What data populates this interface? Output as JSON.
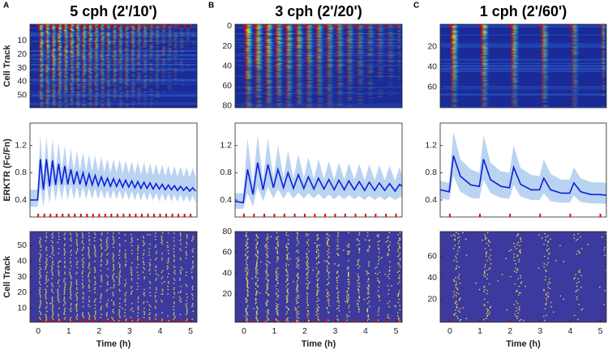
{
  "chart_data": [
    {
      "type": "heatmap",
      "panel_label": "A",
      "title": "5 cph (2'/10')",
      "ylabel": "Cell Track",
      "xlim": [
        -0.27,
        5.21
      ],
      "ylim": [
        -2,
        59
      ],
      "y_reversed": true,
      "yticks": [
        10,
        20,
        30,
        40,
        50
      ],
      "pulses": [
        0,
        0.2,
        0.4,
        0.6,
        0.8,
        1,
        1.2,
        1.4,
        1.6,
        1.8,
        2,
        2.2,
        2.4,
        2.6,
        2.8,
        3,
        3.2,
        3.4,
        3.6,
        3.8,
        4,
        4.2,
        4.4,
        4.6,
        4.8,
        5
      ],
      "pulse_color": "#e00000"
    },
    {
      "type": "line",
      "ylabel": "ERKTR (Fc/Fn)",
      "xlim": [
        -0.27,
        5.21
      ],
      "ylim": [
        0.15,
        1.53
      ],
      "yticks": [
        0.4,
        0.8,
        1.2
      ],
      "color": "#0b1fd8",
      "band_color": "#bad3f1",
      "pulse_color": "#e00000",
      "pulses": [
        0,
        0.2,
        0.4,
        0.6,
        0.8,
        1,
        1.2,
        1.4,
        1.6,
        1.8,
        2,
        2.2,
        2.4,
        2.6,
        2.8,
        3,
        3.2,
        3.4,
        3.6,
        3.8,
        4,
        4.2,
        4.4,
        4.6,
        4.8,
        5
      ],
      "x": [
        -0.27,
        -0.02,
        0.07,
        0.17,
        0.27,
        0.37,
        0.47,
        0.57,
        0.67,
        0.77,
        0.87,
        0.97,
        1.07,
        1.17,
        1.27,
        1.37,
        1.47,
        1.57,
        1.67,
        1.77,
        1.87,
        1.97,
        2.07,
        2.17,
        2.27,
        2.37,
        2.47,
        2.57,
        2.67,
        2.77,
        2.87,
        2.97,
        3.07,
        3.17,
        3.27,
        3.37,
        3.47,
        3.57,
        3.67,
        3.77,
        3.87,
        3.97,
        4.07,
        4.17,
        4.27,
        4.37,
        4.47,
        4.57,
        4.67,
        4.77,
        4.87,
        4.97,
        5.07,
        5.17
      ],
      "values": [
        0.4,
        0.4,
        1.0,
        0.55,
        1.0,
        0.6,
        0.98,
        0.62,
        0.93,
        0.63,
        0.9,
        0.63,
        0.85,
        0.63,
        0.82,
        0.63,
        0.8,
        0.62,
        0.78,
        0.62,
        0.76,
        0.61,
        0.74,
        0.61,
        0.72,
        0.6,
        0.71,
        0.6,
        0.7,
        0.59,
        0.69,
        0.59,
        0.68,
        0.58,
        0.67,
        0.57,
        0.66,
        0.57,
        0.65,
        0.56,
        0.64,
        0.56,
        0.63,
        0.55,
        0.62,
        0.55,
        0.61,
        0.54,
        0.6,
        0.54,
        0.59,
        0.53,
        0.58,
        0.53
      ],
      "upper": [
        0.55,
        0.55,
        1.35,
        0.75,
        1.33,
        0.8,
        1.3,
        0.82,
        1.25,
        0.83,
        1.2,
        0.83,
        1.15,
        0.83,
        1.12,
        0.83,
        1.1,
        0.82,
        1.07,
        0.82,
        1.05,
        0.81,
        1.03,
        0.81,
        1.01,
        0.8,
        1.0,
        0.8,
        0.99,
        0.79,
        0.98,
        0.79,
        0.97,
        0.78,
        0.96,
        0.77,
        0.95,
        0.77,
        0.94,
        0.76,
        0.93,
        0.76,
        0.92,
        0.75,
        0.91,
        0.75,
        0.9,
        0.74,
        0.89,
        0.74,
        0.88,
        0.73,
        0.87,
        0.73
      ],
      "lower": [
        0.3,
        0.3,
        0.6,
        0.3,
        0.65,
        0.35,
        0.66,
        0.38,
        0.65,
        0.4,
        0.64,
        0.4,
        0.62,
        0.41,
        0.6,
        0.41,
        0.59,
        0.41,
        0.58,
        0.41,
        0.57,
        0.41,
        0.56,
        0.41,
        0.55,
        0.41,
        0.55,
        0.41,
        0.54,
        0.4,
        0.54,
        0.4,
        0.53,
        0.4,
        0.52,
        0.39,
        0.52,
        0.39,
        0.51,
        0.39,
        0.5,
        0.38,
        0.5,
        0.38,
        0.49,
        0.38,
        0.48,
        0.37,
        0.48,
        0.37,
        0.47,
        0.36,
        0.47,
        0.36
      ]
    },
    {
      "type": "raster",
      "ylabel": "Cell Track",
      "xlabel": "Time (h)",
      "xlim": [
        -0.27,
        5.21
      ],
      "ylim": [
        1,
        59
      ],
      "yticks": [
        10,
        20,
        30,
        40,
        50
      ],
      "xticks": [
        0,
        1,
        2,
        3,
        4,
        5
      ],
      "pulse_color": "#e00000",
      "pulses": [
        0,
        0.2,
        0.4,
        0.6,
        0.8,
        1,
        1.2,
        1.4,
        1.6,
        1.8,
        2,
        2.2,
        2.4,
        2.6,
        2.8,
        3,
        3.2,
        3.4,
        3.6,
        3.8,
        4,
        4.2,
        4.4,
        4.6,
        4.8,
        5
      ]
    },
    {
      "type": "heatmap",
      "panel_label": "B",
      "title": "3 cph (2'/20')",
      "xlim": [
        -0.29,
        5.2
      ],
      "ylim": [
        -2,
        82
      ],
      "y_reversed": true,
      "yticks": [
        0,
        20,
        40,
        60,
        80
      ],
      "pulses": [
        0,
        0.33,
        0.67,
        1,
        1.33,
        1.67,
        2,
        2.33,
        2.67,
        3,
        3.33,
        3.67,
        4,
        4.33,
        4.67,
        5
      ],
      "pulse_color": "#e00000"
    },
    {
      "type": "line",
      "xlim": [
        -0.29,
        5.2
      ],
      "ylim": [
        0.15,
        1.53
      ],
      "yticks": [
        0.4,
        0.8,
        1.2
      ],
      "color": "#0b1fd8",
      "band_color": "#bad3f1",
      "pulse_color": "#e00000",
      "pulses": [
        0,
        0.33,
        0.67,
        1,
        1.33,
        1.67,
        2,
        2.33,
        2.67,
        3,
        3.33,
        3.67,
        4,
        4.33,
        4.67,
        5
      ],
      "x": [
        -0.29,
        -0.02,
        0.12,
        0.3,
        0.45,
        0.63,
        0.79,
        0.97,
        1.12,
        1.3,
        1.45,
        1.63,
        1.79,
        1.97,
        2.12,
        2.3,
        2.45,
        2.63,
        2.79,
        2.97,
        3.12,
        3.3,
        3.45,
        3.63,
        3.79,
        3.97,
        4.12,
        4.3,
        4.45,
        4.63,
        4.79,
        4.97,
        5.12,
        5.2
      ],
      "values": [
        0.38,
        0.36,
        0.85,
        0.48,
        0.95,
        0.55,
        0.92,
        0.58,
        0.85,
        0.58,
        0.8,
        0.57,
        0.77,
        0.57,
        0.74,
        0.56,
        0.72,
        0.56,
        0.7,
        0.55,
        0.69,
        0.55,
        0.68,
        0.55,
        0.67,
        0.54,
        0.66,
        0.54,
        0.65,
        0.54,
        0.64,
        0.53,
        0.63,
        0.6
      ],
      "upper": [
        0.5,
        0.5,
        1.3,
        0.63,
        1.35,
        0.7,
        1.3,
        0.73,
        1.2,
        0.73,
        1.12,
        0.72,
        1.07,
        0.72,
        1.03,
        0.71,
        1.0,
        0.71,
        0.97,
        0.7,
        0.95,
        0.7,
        0.94,
        0.7,
        0.93,
        0.69,
        0.92,
        0.69,
        0.91,
        0.69,
        0.9,
        0.68,
        0.89,
        0.75
      ],
      "lower": [
        0.27,
        0.27,
        0.5,
        0.3,
        0.6,
        0.38,
        0.6,
        0.42,
        0.56,
        0.42,
        0.53,
        0.42,
        0.51,
        0.42,
        0.5,
        0.42,
        0.49,
        0.41,
        0.48,
        0.41,
        0.47,
        0.41,
        0.47,
        0.41,
        0.46,
        0.4,
        0.46,
        0.4,
        0.45,
        0.4,
        0.45,
        0.4,
        0.44,
        0.45
      ]
    },
    {
      "type": "raster",
      "xlabel": "Time (h)",
      "xlim": [
        -0.29,
        5.2
      ],
      "ylim": [
        -7,
        80
      ],
      "yticks": [
        20,
        40,
        60,
        80
      ],
      "xticks": [
        0,
        1,
        2,
        3,
        4,
        5
      ],
      "pulse_color": "#e00000",
      "pulses": [
        0,
        0.33,
        0.67,
        1,
        1.33,
        1.67,
        2,
        2.33,
        2.67,
        3,
        3.33,
        3.67,
        4,
        4.33,
        4.67,
        5
      ]
    },
    {
      "type": "heatmap",
      "panel_label": "C",
      "title": "1 cph (2'/60')",
      "xlim": [
        -0.32,
        5.2
      ],
      "ylim": [
        -2,
        80
      ],
      "y_reversed": true,
      "yticks": [
        20,
        40,
        60
      ],
      "pulses": [
        0,
        1,
        2,
        3,
        4,
        5
      ],
      "pulse_color": "#e00000"
    },
    {
      "type": "line",
      "xlim": [
        -0.32,
        5.2
      ],
      "ylim": [
        0.15,
        1.53
      ],
      "yticks": [
        0.4,
        0.8,
        1.2
      ],
      "color": "#0b1fd8",
      "band_color": "#bad3f1",
      "pulse_color": "#e00000",
      "pulses": [
        0,
        1,
        2,
        3,
        4,
        5
      ],
      "x": [
        -0.32,
        -0.02,
        0.12,
        0.35,
        0.7,
        0.98,
        1.12,
        1.35,
        1.7,
        1.98,
        2.12,
        2.35,
        2.7,
        2.98,
        3.12,
        3.35,
        3.7,
        3.98,
        4.12,
        4.35,
        4.7,
        4.98,
        5.2
      ],
      "values": [
        0.55,
        0.52,
        1.05,
        0.75,
        0.62,
        0.6,
        1.0,
        0.7,
        0.6,
        0.58,
        0.88,
        0.63,
        0.55,
        0.55,
        0.72,
        0.55,
        0.5,
        0.5,
        0.65,
        0.52,
        0.48,
        0.48,
        0.47
      ],
      "upper": [
        0.68,
        0.65,
        1.4,
        1.0,
        0.85,
        0.8,
        1.35,
        0.95,
        0.82,
        0.8,
        1.2,
        0.87,
        0.77,
        0.75,
        1.0,
        0.78,
        0.7,
        0.7,
        0.88,
        0.72,
        0.66,
        0.66,
        0.65
      ],
      "lower": [
        0.42,
        0.4,
        0.75,
        0.52,
        0.43,
        0.42,
        0.7,
        0.5,
        0.43,
        0.42,
        0.62,
        0.45,
        0.4,
        0.4,
        0.5,
        0.38,
        0.36,
        0.36,
        0.46,
        0.37,
        0.35,
        0.35,
        0.34
      ]
    },
    {
      "type": "raster",
      "xlabel": "Time (h)",
      "xlim": [
        -0.32,
        5.2
      ],
      "ylim": [
        -1.5,
        83
      ],
      "yticks": [
        20,
        40,
        60
      ],
      "xticks": [
        0,
        1,
        2,
        3,
        4,
        5
      ],
      "pulse_color": "#e00000",
      "pulses": [
        0,
        1,
        2,
        3,
        4,
        5
      ]
    }
  ]
}
